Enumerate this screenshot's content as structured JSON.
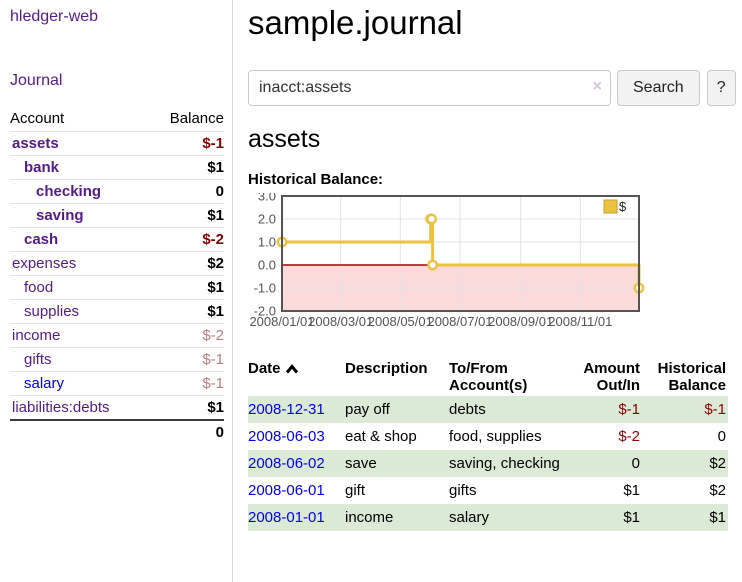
{
  "app": {
    "brand": "hledger-web",
    "nav_journal": "Journal"
  },
  "sidebar": {
    "header": {
      "account": "Account",
      "balance": "Balance"
    },
    "accounts": [
      {
        "name": "assets",
        "indent": 1,
        "balance": "$-1",
        "bold": true,
        "neg": "strong",
        "link": "purple"
      },
      {
        "name": "bank",
        "indent": 2,
        "balance": "$1",
        "bold": true,
        "neg": "none",
        "link": "purple"
      },
      {
        "name": "checking",
        "indent": 3,
        "balance": "0",
        "bold": true,
        "neg": "none",
        "link": "purple"
      },
      {
        "name": "saving",
        "indent": 3,
        "balance": "$1",
        "bold": true,
        "neg": "none",
        "link": "purple"
      },
      {
        "name": "cash",
        "indent": 2,
        "balance": "$-2",
        "bold": true,
        "neg": "strong",
        "link": "purple"
      },
      {
        "name": "expenses",
        "indent": 1,
        "balance": "$2",
        "bold": false,
        "neg": "none",
        "link": "purple"
      },
      {
        "name": "food",
        "indent": 2,
        "balance": "$1",
        "bold": false,
        "neg": "none",
        "link": "purple"
      },
      {
        "name": "supplies",
        "indent": 2,
        "balance": "$1",
        "bold": false,
        "neg": "none",
        "link": "purple"
      },
      {
        "name": "income",
        "indent": 1,
        "balance": "$-2",
        "bold": false,
        "neg": "soft",
        "link": "purple"
      },
      {
        "name": "gifts",
        "indent": 2,
        "balance": "$-1",
        "bold": false,
        "neg": "soft",
        "link": "purple"
      },
      {
        "name": "salary",
        "indent": 2,
        "balance": "$-1",
        "bold": false,
        "neg": "soft",
        "link": "blue"
      },
      {
        "name": "liabilities:debts",
        "indent": 1,
        "balance": "$1",
        "bold": false,
        "neg": "none",
        "link": "purple"
      }
    ],
    "total": "0"
  },
  "header": {
    "title": "sample.journal"
  },
  "search": {
    "value": "inacct:assets",
    "clear_icon": "×",
    "button_label": "Search",
    "help_label": "?"
  },
  "account_page": {
    "title": "assets",
    "chart_label": "Historical Balance:"
  },
  "chart_data": {
    "type": "line",
    "style": "step",
    "title": "Historical Balance",
    "legend": [
      {
        "label": "$",
        "color": "#EDC240"
      }
    ],
    "x": [
      "2008-01-01",
      "2008-06-01",
      "2008-06-02",
      "2008-06-03",
      "2008-12-31"
    ],
    "values": [
      1,
      2,
      2,
      0,
      -1
    ],
    "xlim": [
      "2008-01-01",
      "2008-12-31"
    ],
    "ylim": [
      -2,
      3
    ],
    "y_ticks": [
      "3.0",
      "2.0",
      "1.0",
      "0.0",
      "-1.0",
      "-2.0"
    ],
    "x_ticks": [
      "2008/01/01",
      "2008/03/01",
      "2008/05/01",
      "2008/07/01",
      "2008/09/01",
      "2008/11/01"
    ],
    "grid": true,
    "legend_position": "top-right",
    "series_color": "#EDC240",
    "negative_fill": "#fbdada",
    "zero_line_color": "#a60000"
  },
  "register": {
    "headers": {
      "date": "Date",
      "description": "Description",
      "accounts": "To/From Account(s)",
      "amount": "Amount Out/In",
      "balance": "Historical Balance"
    },
    "rows": [
      {
        "date": "2008-12-31",
        "description": "pay off",
        "accounts": "debts",
        "amount": "$-1",
        "balance": "$-1",
        "amount_neg": true,
        "balance_neg": true,
        "green": true
      },
      {
        "date": "2008-06-03",
        "description": "eat & shop",
        "accounts": "food, supplies",
        "amount": "$-2",
        "balance": "0",
        "amount_neg": true,
        "balance_neg": false,
        "green": false
      },
      {
        "date": "2008-06-02",
        "description": "save",
        "accounts": "saving, checking",
        "amount": "0",
        "balance": "$2",
        "amount_neg": false,
        "balance_neg": false,
        "green": true
      },
      {
        "date": "2008-06-01",
        "description": "gift",
        "accounts": "gifts",
        "amount": "$1",
        "balance": "$2",
        "amount_neg": false,
        "balance_neg": false,
        "green": false
      },
      {
        "date": "2008-01-01",
        "description": "income",
        "accounts": "salary",
        "amount": "$1",
        "balance": "$1",
        "amount_neg": false,
        "balance_neg": false,
        "green": true
      }
    ]
  }
}
